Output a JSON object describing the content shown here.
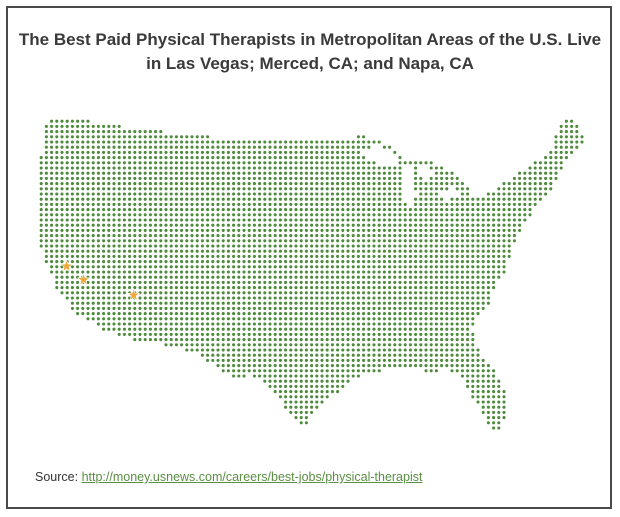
{
  "title": "The Best Paid Physical Therapists in Metropolitan Areas of the U.S. Live in Las Vegas; Merced, CA; and Napa, CA",
  "map": {
    "region": "United States (contiguous)",
    "style": "dot-matrix",
    "dot_color": "#4d8a3c",
    "marker_color": "#f0a83a",
    "markers": [
      {
        "name": "Napa, CA",
        "lat": 38.3,
        "lon": -122.29
      },
      {
        "name": "Merced, CA",
        "lat": 37.3,
        "lon": -120.48
      },
      {
        "name": "Las Vegas",
        "lat": 36.17,
        "lon": -115.14
      }
    ]
  },
  "source": {
    "label": "Source:",
    "link_text": "http://money.usnews.com/careers/best-jobs/physical-therapist"
  }
}
